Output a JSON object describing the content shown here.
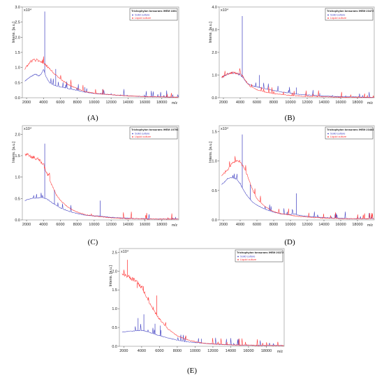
{
  "figure": {
    "panels": [
      {
        "letter": "(A)",
        "strain": "Trichophyton tonsurans IHEM 1801",
        "ymax": 3.0,
        "ystep": 0.5,
        "xstep": 2000
      },
      {
        "letter": "(B)",
        "strain": "Trichophyton tonsurans IHEM 23472",
        "ymax": 4.0,
        "ystep": 1.0,
        "xstep": 2000
      },
      {
        "letter": "(C)",
        "strain": "Trichophyton tonsurans IHEM 19756",
        "ymax": 2.2,
        "ystep": 0.5,
        "xstep": 2000
      },
      {
        "letter": "(D)",
        "strain": "Trichophyton tonsurans IHEM 23483",
        "ymax": 1.6,
        "ystep": 0.5,
        "xstep": 2000
      },
      {
        "letter": "(E)",
        "strain": "Trichophyton tonsurans IHEM 26372",
        "ymax": 2.6,
        "ystep": 0.5,
        "xstep": 2000
      }
    ],
    "ylabel": "Intens. [a.u.]",
    "yexp": "x10⁴",
    "xunit": "m/z",
    "legend": [
      "Solid culture",
      "Liquid culture"
    ],
    "colors": {
      "solid": "#3b3bc0",
      "liquid": "#ff2a2a"
    }
  },
  "chart_data": [
    {
      "type": "line",
      "panel": "A",
      "title": "Trichophyton tonsurans IHEM 1801",
      "xlabel": "m/z",
      "ylabel": "Intens. [a.u.]",
      "y_multiplier": "x10^4",
      "xlim": [
        1500,
        20000
      ],
      "ylim": [
        0,
        3.0
      ],
      "x": [
        1800,
        2500,
        3000,
        3500,
        3800,
        4000,
        4300,
        4700,
        5200,
        6000,
        7000,
        8000,
        9000,
        10000,
        11000,
        12000,
        13000,
        14000,
        15000,
        16000,
        17000,
        18000,
        19000,
        20000
      ],
      "series": [
        {
          "name": "Solid culture",
          "values": [
            0.55,
            0.7,
            0.78,
            0.72,
            0.8,
            0.95,
            0.7,
            0.5,
            0.42,
            0.36,
            0.3,
            0.24,
            0.18,
            0.14,
            0.12,
            0.1,
            0.08,
            0.06,
            0.05,
            0.04,
            0.03,
            0.03,
            0.02,
            0.02
          ],
          "peaks": [
            [
              4150,
              2.85
            ],
            [
              5450,
              0.95
            ],
            [
              8900,
              0.35
            ],
            [
              11000,
              0.28
            ],
            [
              12000,
              0.15
            ]
          ]
        },
        {
          "name": "Liquid culture",
          "values": [
            0.95,
            1.2,
            1.25,
            1.22,
            1.18,
            1.15,
            1.08,
            0.95,
            0.82,
            0.62,
            0.42,
            0.3,
            0.2,
            0.15,
            0.12,
            0.1,
            0.08,
            0.06,
            0.05,
            0.04,
            0.03,
            0.03,
            0.02,
            0.02
          ],
          "peaks": []
        }
      ]
    },
    {
      "type": "line",
      "panel": "B",
      "title": "Trichophyton tonsurans IHEM 23472",
      "xlabel": "m/z",
      "ylabel": "Intens. [a.u.]",
      "y_multiplier": "x10^4",
      "xlim": [
        1500,
        20000
      ],
      "ylim": [
        0,
        4.0
      ],
      "x": [
        1800,
        2500,
        3000,
        3500,
        4000,
        4300,
        4700,
        5200,
        6000,
        7000,
        8000,
        9000,
        10000,
        11000,
        12000,
        13000,
        14000,
        15000,
        16000,
        17000,
        18000,
        19000,
        20000
      ],
      "series": [
        {
          "name": "Solid culture",
          "values": [
            0.9,
            1.05,
            1.1,
            1.08,
            1.0,
            0.9,
            0.7,
            0.55,
            0.48,
            0.4,
            0.32,
            0.25,
            0.2,
            0.15,
            0.12,
            0.1,
            0.08,
            0.06,
            0.05,
            0.04,
            0.03,
            0.02,
            0.02
          ],
          "peaks": [
            [
              4250,
              3.6
            ],
            [
              6300,
              1.0
            ],
            [
              10700,
              0.45
            ],
            [
              13500,
              0.2
            ]
          ]
        },
        {
          "name": "Liquid culture",
          "values": [
            0.9,
            1.05,
            1.1,
            1.08,
            1.05,
            0.95,
            0.72,
            0.5,
            0.35,
            0.25,
            0.18,
            0.14,
            0.1,
            0.08,
            0.06,
            0.05,
            0.04,
            0.03,
            0.02,
            0.02,
            0.02,
            0.01,
            0.01
          ],
          "peaks": []
        }
      ]
    },
    {
      "type": "line",
      "panel": "C",
      "title": "Trichophyton tonsurans IHEM 19756",
      "xlabel": "m/z",
      "ylabel": "Intens. [a.u.]",
      "y_multiplier": "x10^4",
      "xlim": [
        1500,
        20000
      ],
      "ylim": [
        0,
        2.2
      ],
      "x": [
        1800,
        2500,
        3000,
        3500,
        4000,
        4500,
        5000,
        5500,
        6000,
        7000,
        8000,
        9000,
        10000,
        10500,
        11000,
        12000,
        13000,
        14000,
        15000,
        16000,
        17000,
        18000,
        19000,
        20000
      ],
      "series": [
        {
          "name": "Solid culture",
          "values": [
            0.45,
            0.5,
            0.5,
            0.52,
            0.52,
            0.48,
            0.4,
            0.34,
            0.28,
            0.2,
            0.15,
            0.11,
            0.09,
            0.1,
            0.08,
            0.06,
            0.05,
            0.04,
            0.03,
            0.03,
            0.02,
            0.02,
            0.02,
            0.02
          ],
          "peaks": [
            [
              4150,
              1.78
            ],
            [
              5300,
              0.7
            ],
            [
              10700,
              0.45
            ]
          ]
        },
        {
          "name": "Liquid culture",
          "values": [
            1.55,
            1.48,
            1.45,
            1.4,
            1.28,
            1.05,
            0.8,
            0.6,
            0.45,
            0.28,
            0.18,
            0.12,
            0.09,
            0.08,
            0.07,
            0.05,
            0.04,
            0.03,
            0.03,
            0.02,
            0.02,
            0.02,
            0.02,
            0.02
          ],
          "peaks": []
        }
      ]
    },
    {
      "type": "line",
      "panel": "D",
      "title": "Trichophyton tonsurans IHEM 23483",
      "xlabel": "m/z",
      "ylabel": "Intens. [a.u.]",
      "y_multiplier": "x10^4",
      "xlim": [
        1500,
        20000
      ],
      "ylim": [
        0,
        1.6
      ],
      "x": [
        1800,
        2500,
        3000,
        3500,
        4000,
        4500,
        5000,
        5500,
        6000,
        7000,
        8000,
        9000,
        10000,
        10500,
        11000,
        12000,
        13000,
        14000,
        15000,
        16000,
        17000,
        18000,
        19000,
        20000
      ],
      "series": [
        {
          "name": "Solid culture",
          "values": [
            0.6,
            0.7,
            0.72,
            0.7,
            0.62,
            0.48,
            0.38,
            0.3,
            0.25,
            0.18,
            0.13,
            0.1,
            0.09,
            0.1,
            0.08,
            0.06,
            0.05,
            0.04,
            0.03,
            0.03,
            0.02,
            0.02,
            0.02,
            0.02
          ],
          "peaks": [
            [
              4250,
              1.45
            ],
            [
              5200,
              0.6
            ],
            [
              10700,
              0.45
            ]
          ]
        },
        {
          "name": "Liquid culture",
          "values": [
            0.75,
            0.85,
            0.95,
            1.0,
            0.98,
            0.88,
            0.7,
            0.5,
            0.36,
            0.22,
            0.14,
            0.1,
            0.08,
            0.07,
            0.06,
            0.05,
            0.04,
            0.03,
            0.03,
            0.02,
            0.02,
            0.02,
            0.02,
            0.02
          ],
          "peaks": []
        }
      ]
    },
    {
      "type": "line",
      "panel": "E",
      "title": "Trichophyton tonsurans IHEM 26372",
      "xlabel": "m/z",
      "ylabel": "Intens. [a.u.]",
      "y_multiplier": "x10^4",
      "xlim": [
        1500,
        20000
      ],
      "ylim": [
        0,
        2.6
      ],
      "x": [
        1800,
        2500,
        3000,
        3500,
        4000,
        4500,
        5000,
        5500,
        6000,
        7000,
        8000,
        9000,
        10000,
        11000,
        12000,
        13000,
        14000,
        15000,
        16000,
        17000,
        18000,
        19000,
        20000
      ],
      "series": [
        {
          "name": "Solid culture",
          "values": [
            0.38,
            0.4,
            0.4,
            0.42,
            0.42,
            0.4,
            0.36,
            0.32,
            0.28,
            0.22,
            0.16,
            0.12,
            0.1,
            0.08,
            0.06,
            0.05,
            0.04,
            0.03,
            0.03,
            0.02,
            0.02,
            0.02,
            0.02
          ],
          "peaks": [
            [
              3600,
              0.75
            ],
            [
              4250,
              0.85
            ],
            [
              5500,
              0.6
            ],
            [
              6100,
              0.55
            ],
            [
              10700,
              0.2
            ]
          ]
        },
        {
          "name": "Liquid culture",
          "values": [
            1.95,
            1.85,
            1.78,
            1.7,
            1.55,
            1.35,
            1.1,
            0.9,
            0.72,
            0.45,
            0.28,
            0.18,
            0.12,
            0.08,
            0.06,
            0.05,
            0.04,
            0.03,
            0.03,
            0.02,
            0.02,
            0.02,
            0.02
          ],
          "peaks": [
            [
              2400,
              2.3
            ],
            [
              3500,
              1.55
            ],
            [
              4200,
              1.6
            ],
            [
              5300,
              1.05
            ],
            [
              5700,
              1.35
            ]
          ]
        }
      ]
    }
  ]
}
